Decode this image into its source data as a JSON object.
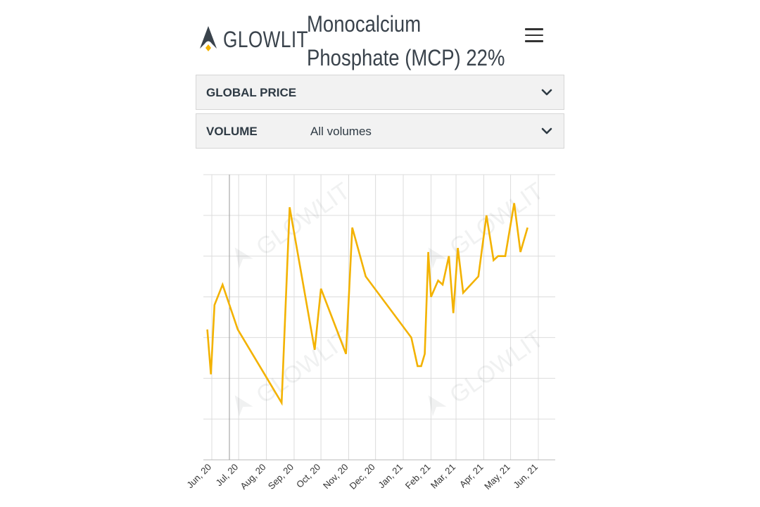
{
  "brand": {
    "name": "GLOWLIT",
    "accent": "#f3b200"
  },
  "page": {
    "title_line1": "Monocalcium",
    "title_line2": "Phosphate (MCP) 22%"
  },
  "filters": {
    "global_price": {
      "label": "GLOBAL PRICE"
    },
    "volume": {
      "label": "VOLUME",
      "value": "All volumes"
    }
  },
  "watermark": "GLOWLIT",
  "chart_data": {
    "type": "line",
    "line_color": "#f3b200",
    "grid": true,
    "x_tick_labels": [
      "Jun, 20",
      "Jul, 20",
      "Aug, 20",
      "Sep, 20",
      "Oct, 20",
      "Nov, 20",
      "Dec, 20",
      "Jan, 21",
      "Feb, 21",
      "Mar, 21",
      "Apr, 21",
      "May, 21",
      "Jun, 21"
    ],
    "ylim": [
      0,
      7
    ],
    "y_tick_labels": [],
    "series": [
      {
        "points": [
          [
            "2020-05-27",
            3.2
          ],
          [
            "2020-05-31",
            2.1
          ],
          [
            "2020-06-04",
            3.8
          ],
          [
            "2020-06-13",
            4.3
          ],
          [
            "2020-06-30",
            3.2
          ],
          [
            "2020-08-18",
            1.4
          ],
          [
            "2020-08-27",
            6.2
          ],
          [
            "2020-09-24",
            2.7
          ],
          [
            "2020-10-01",
            4.2
          ],
          [
            "2020-10-29",
            2.6
          ],
          [
            "2020-11-05",
            5.7
          ],
          [
            "2020-11-20",
            4.5
          ],
          [
            "2021-01-10",
            3.0
          ],
          [
            "2021-01-17",
            2.3
          ],
          [
            "2021-01-21",
            2.3
          ],
          [
            "2021-01-25",
            2.6
          ],
          [
            "2021-01-29",
            5.1
          ],
          [
            "2021-02-01",
            4.0
          ],
          [
            "2021-02-09",
            4.4
          ],
          [
            "2021-02-14",
            4.3
          ],
          [
            "2021-02-21",
            5.0
          ],
          [
            "2021-02-26",
            3.6
          ],
          [
            "2021-03-03",
            5.2
          ],
          [
            "2021-03-09",
            4.1
          ],
          [
            "2021-03-26",
            4.5
          ],
          [
            "2021-04-04",
            6.0
          ],
          [
            "2021-04-12",
            4.9
          ],
          [
            "2021-04-17",
            5.0
          ],
          [
            "2021-04-25",
            5.0
          ],
          [
            "2021-05-05",
            6.3
          ],
          [
            "2021-05-12",
            5.1
          ],
          [
            "2021-05-20",
            5.7
          ]
        ]
      }
    ]
  }
}
